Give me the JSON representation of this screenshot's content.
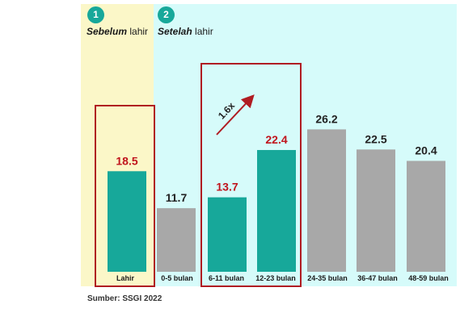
{
  "phases": [
    {
      "number": "1",
      "label_italic": "Sebelum",
      "label_rest": " lahir"
    },
    {
      "number": "2",
      "label_italic": "Setelah",
      "label_rest": " lahir"
    }
  ],
  "annotation": {
    "multiplier": "1.6x"
  },
  "source": "Sumber: SSGI 2022",
  "colors": {
    "teal": "#17a89a",
    "grey": "#a8a8a8",
    "highlight_value": "#c0141c",
    "box_outline": "#b01c22",
    "panel_before": "#fbf7c8",
    "panel_after": "#d6fbfa"
  },
  "chart_data": {
    "type": "bar",
    "categories": [
      "Lahir",
      "0-5 bulan",
      "6-11 bulan",
      "12-23 bulan",
      "24-35 bulan",
      "36-47 bulan",
      "48-59 bulan"
    ],
    "values": [
      18.5,
      11.7,
      13.7,
      22.4,
      26.2,
      22.5,
      20.4
    ],
    "value_labels": [
      "18.5",
      "11.7",
      "13.7",
      "22.4",
      "26.2",
      "22.5",
      "20.4"
    ],
    "bar_colors": [
      "teal",
      "grey",
      "teal",
      "teal",
      "grey",
      "grey",
      "grey"
    ],
    "highlighted": [
      0,
      2,
      3
    ],
    "ylim": [
      0,
      30
    ],
    "grid": false,
    "title": "",
    "xlabel": "",
    "ylabel": ""
  }
}
